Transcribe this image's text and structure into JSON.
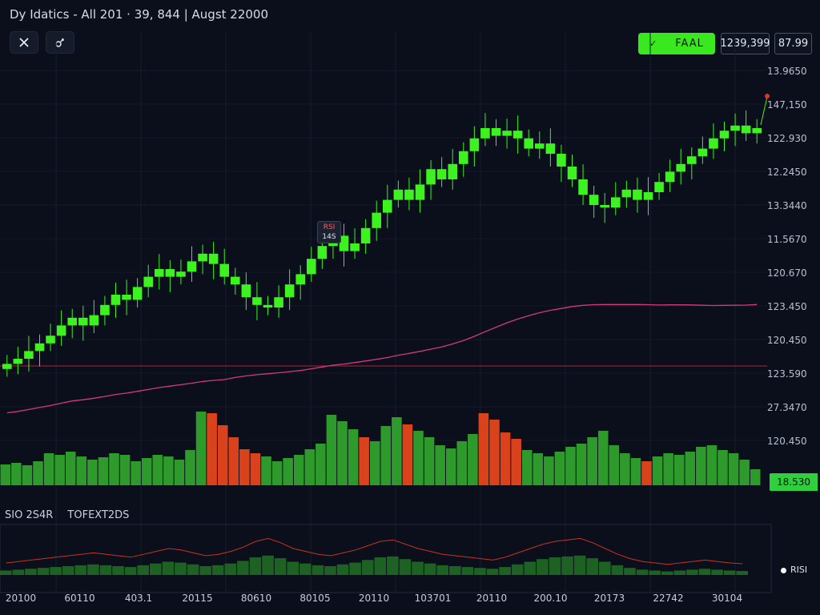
{
  "header": {
    "title": "Dy Idatics - All 201 · 39, 844 | Augst 22000",
    "close_icon": "close-icon",
    "tool_icon": "link-search-icon"
  },
  "trade": {
    "button_label": "FAAL",
    "chevron_icon": "chevron-down-icon",
    "price_box": "1239,399",
    "small_box": "87.99"
  },
  "price_axis": [
    "13.9650",
    "147,150",
    "122.930",
    "12.2450",
    "13.3440",
    "11.5670",
    "120.670",
    "123.450",
    "120.450",
    "123.590",
    "27.3470",
    "120.450"
  ],
  "last_price_tag": "18.530",
  "tooltip": {
    "line1": "RSI",
    "line2": "14S"
  },
  "indicator": {
    "label1": "SIO 2S4R",
    "label2": "TOFEXT2DS",
    "badge": "RISI",
    "badge_icon": "dot-icon"
  },
  "x_axis": [
    "20100",
    "60110",
    "403.1",
    "20115",
    "80610",
    "80105",
    "20110",
    "103701",
    "20110",
    "200.10",
    "20173",
    "22742",
    "30104"
  ],
  "colors": {
    "background": "#0b0f1c",
    "candle_up": "#3cf21f",
    "volume_up": "#2e9a2c",
    "volume_down": "#d9421b",
    "moving_average": "#d23a7a",
    "horizontal_line": "#b1232e",
    "accent": "#39e81f"
  },
  "chart_data": [
    {
      "type": "candlestick",
      "title": "",
      "series": [
        {
          "name": "",
          "close": [
            5.8,
            6.0,
            6.3,
            6.6,
            6.9,
            7.3,
            7.6,
            7.3,
            7.7,
            8.1,
            8.5,
            8.3,
            8.8,
            9.2,
            9.5,
            9.2,
            9.4,
            9.8,
            10.1,
            9.7,
            9.2,
            8.9,
            8.4,
            8.1,
            8.0,
            8.4,
            8.9,
            9.3,
            9.9,
            10.4,
            10.8,
            10.2,
            10.5,
            11.1,
            11.7,
            12.2,
            12.6,
            12.2,
            12.8,
            13.4,
            13.0,
            13.6,
            14.1,
            14.6,
            15.0,
            14.7,
            14.9,
            14.6,
            14.2,
            14.4,
            14.0,
            13.5,
            13.0,
            12.4,
            12.0,
            11.9,
            12.3,
            12.6,
            12.2,
            12.5,
            12.9,
            13.3,
            13.6,
            13.9,
            14.2,
            14.6,
            14.9,
            15.1,
            14.8,
            15.0
          ]
        }
      ],
      "xlabel": "",
      "ylabel": ""
    },
    {
      "type": "bar",
      "title": "",
      "series": [
        {
          "name": "",
          "values": [
            26,
            28,
            25,
            30,
            40,
            38,
            42,
            36,
            32,
            35,
            40,
            38,
            30,
            34,
            38,
            36,
            32,
            44,
            92,
            90,
            75,
            60,
            45,
            40,
            36,
            30,
            34,
            38,
            45,
            52,
            88,
            80,
            70,
            60,
            55,
            74,
            85,
            76,
            68,
            60,
            50,
            46,
            55,
            64,
            90,
            82,
            66,
            58,
            44,
            40,
            36,
            42,
            48,
            52,
            60,
            68,
            50,
            40,
            34,
            30,
            36,
            40,
            38,
            42,
            48,
            50,
            44,
            40,
            32,
            20
          ]
        }
      ]
    },
    {
      "type": "area",
      "title": "",
      "series": [
        {
          "name": "",
          "values": [
            10,
            12,
            14,
            16,
            18,
            20,
            22,
            24,
            22,
            20,
            18,
            22,
            26,
            30,
            28,
            24,
            20,
            22,
            26,
            32,
            40,
            44,
            38,
            30,
            26,
            22,
            20,
            24,
            28,
            34,
            40,
            42,
            36,
            30,
            26,
            22,
            20,
            18,
            16,
            14,
            18,
            24,
            30,
            36,
            40,
            42,
            44,
            38,
            30,
            22,
            16,
            12,
            10,
            8,
            10,
            12,
            14,
            12,
            10,
            9
          ]
        }
      ]
    }
  ]
}
